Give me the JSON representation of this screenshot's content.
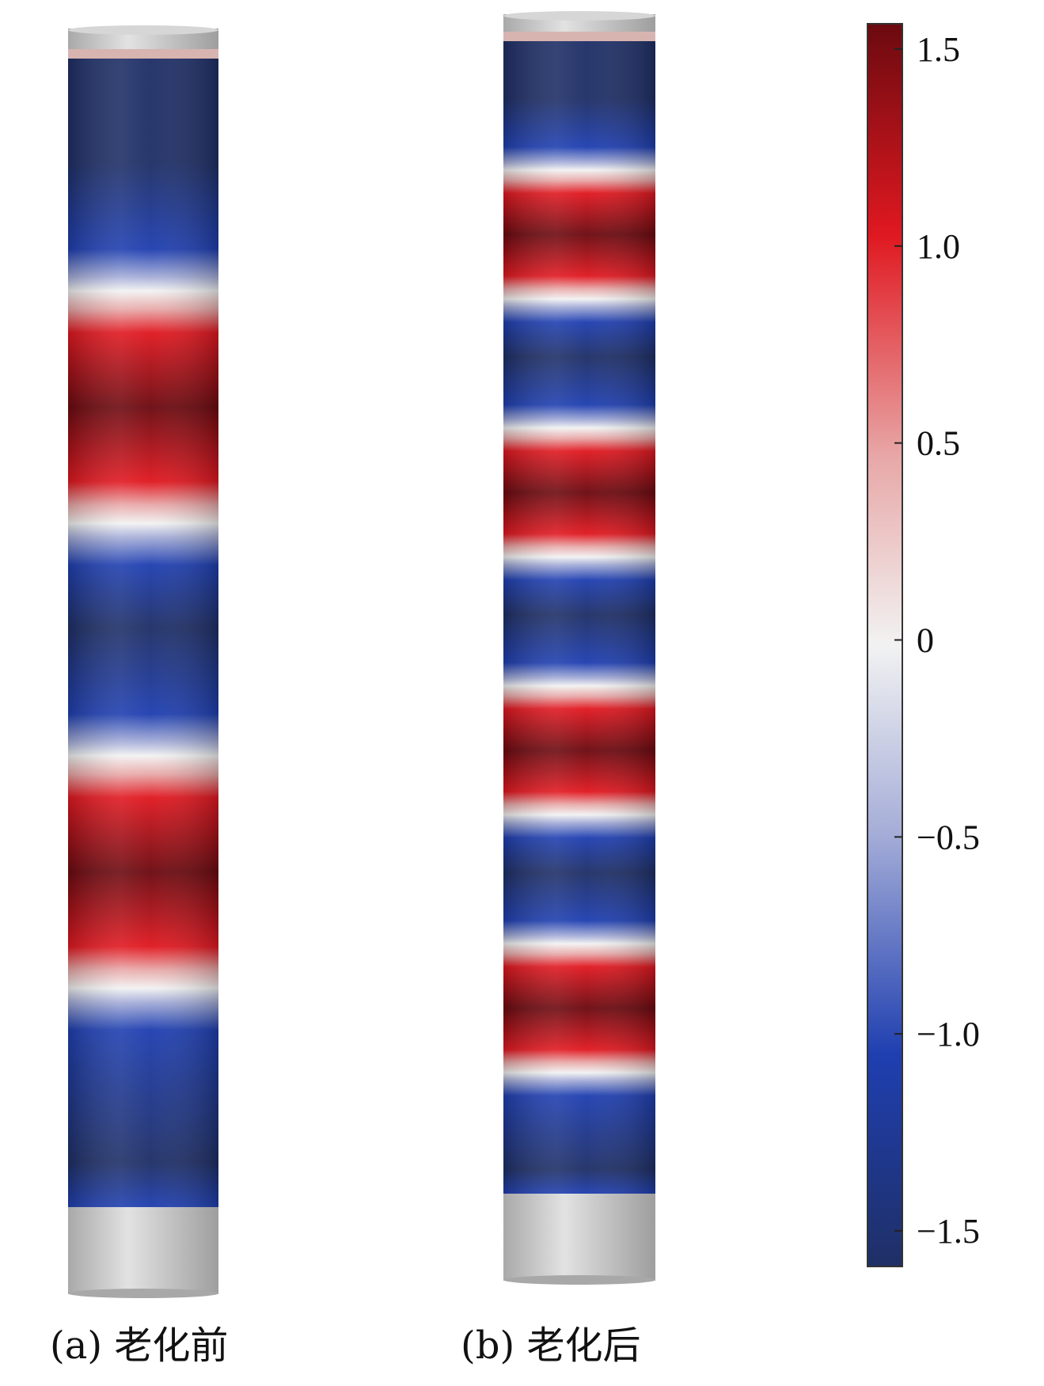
{
  "colors": {
    "dark_red": "#6b0a10",
    "red": "#e01820",
    "light_red": "#e8a8a8",
    "white": "#f2f2f2",
    "light_blue": "#a6aed8",
    "blue": "#1f3fb0",
    "dark_blue": "#1f2f66",
    "end_cap": "#c9c9c9"
  },
  "colorbar": {
    "min": -1.5,
    "max": 1.5,
    "ticks": [
      {
        "value": 1.5,
        "label": "1.5"
      },
      {
        "value": 1.0,
        "label": "1.0"
      },
      {
        "value": 0.5,
        "label": "0.5"
      },
      {
        "value": 0,
        "label": "0"
      },
      {
        "value": -0.5,
        "label": "−0.5"
      },
      {
        "value": -1.0,
        "label": "−1.0"
      },
      {
        "value": -1.5,
        "label": "−1.5"
      }
    ]
  },
  "panels": [
    {
      "caption": "(a) 老化前",
      "red_bands": 2,
      "blue_bands": 3
    },
    {
      "caption": "(b) 老化后",
      "red_bands": 4,
      "blue_bands": 5
    }
  ]
}
